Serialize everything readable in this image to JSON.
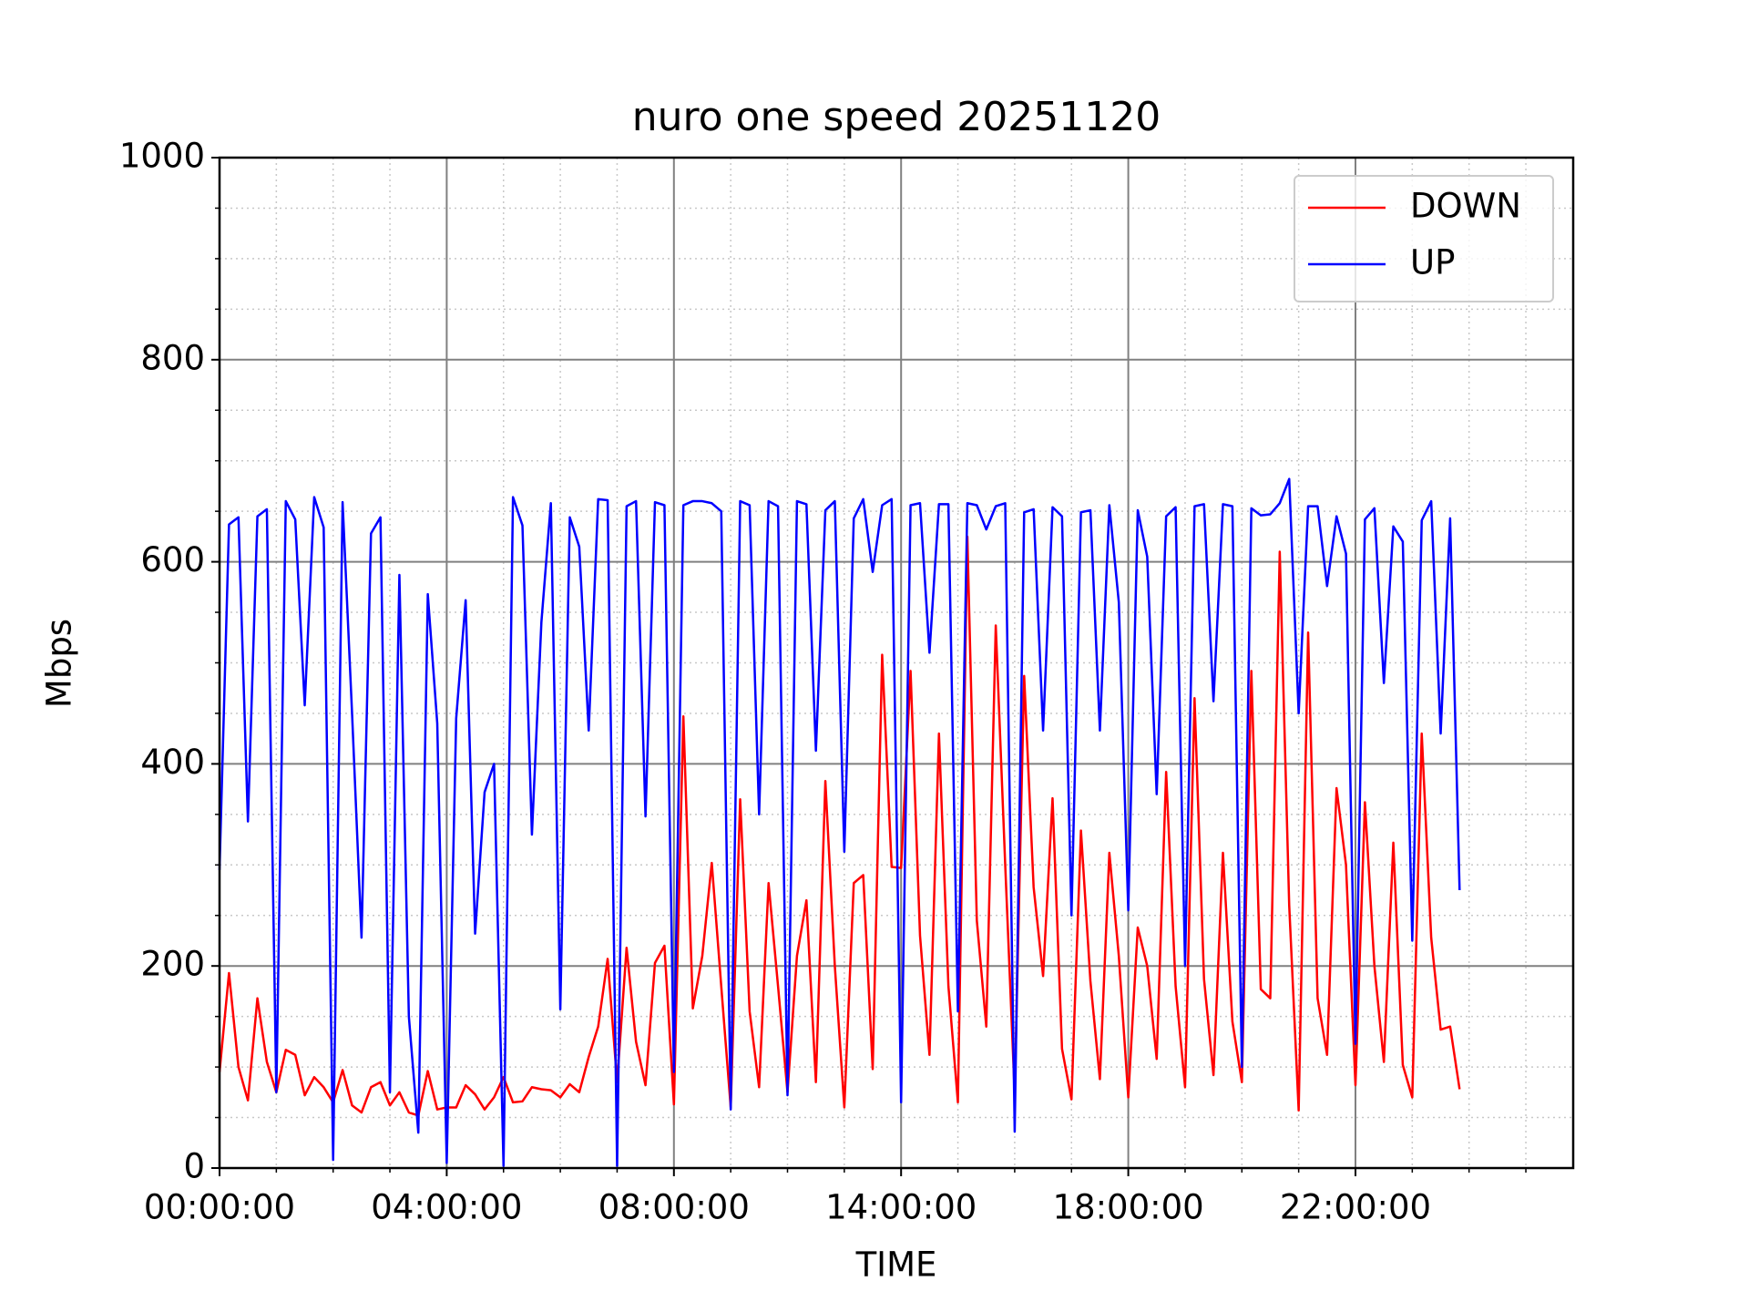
{
  "chart_data": {
    "type": "line",
    "title": "nuro one speed 20251120",
    "x_label": "TIME",
    "y_label": "Mbps",
    "x": [
      0,
      1,
      2,
      3,
      4,
      5,
      6,
      7,
      8,
      9,
      10,
      11,
      12,
      13,
      14,
      15,
      16,
      17,
      18,
      19,
      20,
      21,
      22,
      23,
      24,
      25,
      26,
      27,
      28,
      29,
      30,
      31,
      32,
      33,
      34,
      35,
      36,
      37,
      38,
      39,
      40,
      41,
      42,
      43,
      44,
      45,
      46,
      47,
      48,
      49,
      50,
      51,
      52,
      53,
      54,
      55,
      56,
      57,
      58,
      59,
      60,
      61,
      62,
      63,
      64,
      65,
      66,
      67,
      68,
      69,
      70,
      71,
      72,
      73,
      74,
      75,
      76,
      77,
      78,
      79,
      80,
      81,
      82,
      83,
      84,
      85,
      86,
      87,
      88,
      89,
      90,
      91,
      92,
      93,
      94,
      95,
      96,
      97,
      98,
      99,
      100,
      101,
      102,
      103,
      104,
      105,
      106,
      107,
      108,
      109,
      110,
      111,
      112,
      113,
      114,
      115,
      116,
      117,
      118,
      119,
      120,
      121,
      122,
      123,
      124,
      125,
      126,
      127,
      128,
      129,
      130,
      131
    ],
    "series": [
      {
        "name": "DOWN",
        "color": "#ff0000",
        "values": [
          95,
          193,
          100,
          67,
          168,
          105,
          75,
          117,
          112,
          72,
          90,
          80,
          65,
          97,
          62,
          55,
          80,
          85,
          62,
          75,
          55,
          52,
          96,
          58,
          60,
          60,
          82,
          73,
          58,
          70,
          90,
          65,
          66,
          80,
          78,
          77,
          70,
          83,
          75,
          110,
          140,
          207,
          85,
          218,
          125,
          82,
          203,
          220,
          63,
          447,
          158,
          210,
          302,
          180,
          60,
          365,
          155,
          80,
          282,
          180,
          75,
          210,
          265,
          85,
          383,
          200,
          60,
          282,
          290,
          98,
          508,
          298,
          297,
          492,
          230,
          112,
          430,
          180,
          65,
          625,
          245,
          140,
          537,
          300,
          73,
          487,
          278,
          190,
          366,
          118,
          68,
          334,
          185,
          88,
          312,
          210,
          70,
          238,
          200,
          108,
          392,
          180,
          80,
          465,
          187,
          92,
          312,
          145,
          85,
          492,
          177,
          168,
          610,
          260,
          57,
          530,
          168,
          112,
          376,
          300,
          82,
          362,
          200,
          105,
          322,
          102,
          70,
          430,
          228,
          137,
          140,
          78
        ]
      },
      {
        "name": "UP",
        "color": "#0000ff",
        "values": [
          295,
          637,
          644,
          343,
          645,
          652,
          75,
          660,
          642,
          458,
          664,
          634,
          8,
          659,
          450,
          228,
          628,
          644,
          75,
          587,
          150,
          35,
          568,
          440,
          5,
          445,
          562,
          232,
          372,
          400,
          2,
          664,
          636,
          330,
          540,
          658,
          157,
          644,
          615,
          433,
          662,
          661,
          2,
          655,
          660,
          348,
          659,
          656,
          95,
          656,
          660,
          660,
          658,
          650,
          58,
          660,
          656,
          350,
          660,
          655,
          72,
          660,
          657,
          413,
          651,
          660,
          313,
          643,
          662,
          590,
          656,
          662,
          65,
          656,
          658,
          510,
          657,
          657,
          155,
          658,
          656,
          632,
          655,
          658,
          36,
          649,
          652,
          433,
          654,
          645,
          250,
          649,
          651,
          433,
          656,
          560,
          255,
          651,
          605,
          370,
          645,
          654,
          200,
          655,
          657,
          462,
          657,
          655,
          100,
          653,
          646,
          647,
          658,
          682,
          450,
          655,
          655,
          576,
          645,
          608,
          123,
          642,
          653,
          480,
          635,
          620,
          225,
          641,
          660,
          430,
          643,
          275
        ]
      }
    ],
    "xlim": [
      0,
      143
    ],
    "xticks": [
      {
        "value": 0,
        "label": "00:00:00"
      },
      {
        "value": 24,
        "label": "04:00:00"
      },
      {
        "value": 48,
        "label": "08:00:00"
      },
      {
        "value": 72,
        "label": "14:00:00"
      },
      {
        "value": 96,
        "label": "18:00:00"
      },
      {
        "value": 120,
        "label": "22:00:00"
      }
    ],
    "ylim": [
      0,
      1000
    ],
    "yticks": [
      0,
      200,
      400,
      600,
      800,
      1000
    ],
    "grid": true,
    "minor_grid": true,
    "legend": "upper right"
  }
}
